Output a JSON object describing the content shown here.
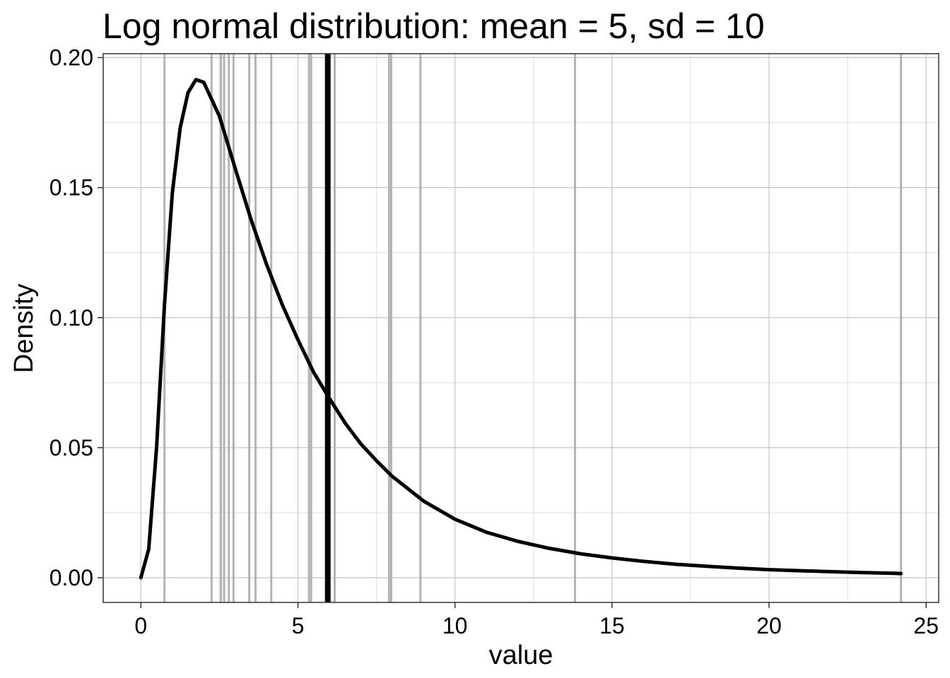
{
  "chart_data": {
    "type": "line",
    "title": "Log normal distribution: mean = 5, sd = 10",
    "xlabel": "value",
    "ylabel": "Density",
    "xlim": [
      -1.2,
      25.4
    ],
    "ylim": [
      -0.0095,
      0.2015
    ],
    "x_ticks": [
      0,
      5,
      10,
      15,
      20,
      25
    ],
    "x_tick_labels": [
      "0",
      "5",
      "10",
      "15",
      "20",
      "25"
    ],
    "y_ticks": [
      0.0,
      0.05,
      0.1,
      0.15,
      0.2
    ],
    "y_tick_labels": [
      "0.00",
      "0.05",
      "0.10",
      "0.15",
      "0.20"
    ],
    "grid": true,
    "legend": "none",
    "sample_values": [
      0.75,
      2.25,
      2.55,
      2.65,
      2.8,
      2.95,
      3.45,
      3.65,
      4.15,
      5.35,
      5.42,
      6.17,
      7.9,
      7.97,
      8.9,
      13.82,
      24.2
    ],
    "mean_line_x": 5.95,
    "series": [
      {
        "x": [
          0.0,
          0.25,
          0.5,
          0.75,
          1.0,
          1.25,
          1.5,
          1.75,
          2.0,
          2.5,
          3.0,
          3.5,
          4.0,
          4.5,
          5.0,
          5.5,
          6.0,
          6.5,
          7.0,
          7.5,
          8.0,
          9.0,
          10.0,
          11.0,
          12.0,
          13.0,
          14.0,
          15.0,
          16.0,
          17.0,
          18.0,
          19.0,
          20.0,
          21.0,
          22.0,
          23.0,
          24.0,
          24.2
        ],
        "y": [
          0.0,
          0.011,
          0.05,
          0.105,
          0.148,
          0.173,
          0.1865,
          0.1915,
          0.1905,
          0.1775,
          0.1575,
          0.138,
          0.1205,
          0.105,
          0.0915,
          0.079,
          0.069,
          0.0595,
          0.0515,
          0.045,
          0.039,
          0.0295,
          0.0225,
          0.0175,
          0.014,
          0.0113,
          0.0092,
          0.0076,
          0.0063,
          0.0052,
          0.0044,
          0.0037,
          0.0031,
          0.0027,
          0.0023,
          0.002,
          0.0017,
          0.0016
        ]
      }
    ]
  }
}
